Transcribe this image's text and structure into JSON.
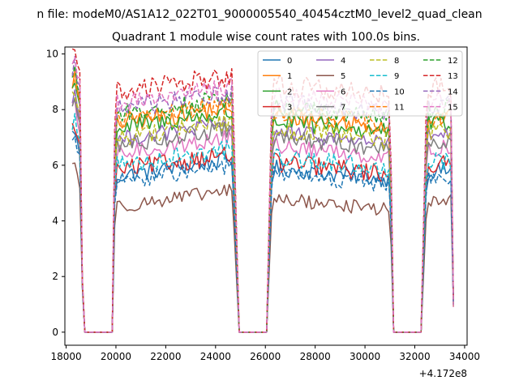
{
  "chart_data": {
    "type": "line",
    "suptitle": "n file: modeM0/AS1A12_022T01_9000005540_40454cztM0_level2_quad_clean",
    "title": "Quadrant 1 module wise count rates with 100.0s bins.",
    "xlabel": "",
    "ylabel": "",
    "x_offset_label": "+4.172e8",
    "xlim": [
      17950,
      34100
    ],
    "ylim": [
      -0.47,
      10.25
    ],
    "x_ticks": [
      18000,
      20000,
      22000,
      24000,
      26000,
      28000,
      30000,
      32000,
      34000
    ],
    "x_tick_labels": [
      "18000",
      "20000",
      "22000",
      "24000",
      "26000",
      "28000",
      "30000",
      "32000",
      "34000"
    ],
    "y_ticks": [
      0,
      2,
      4,
      6,
      8,
      10
    ],
    "y_tick_labels": [
      "0",
      "2",
      "4",
      "6",
      "8",
      "10"
    ],
    "grid": false,
    "legend_position": "top-right",
    "legend_columns": 4,
    "bin_seconds": 100,
    "segments": [
      {
        "start": 18250,
        "end": 18550
      },
      {
        "start": 19950,
        "end": 24650
      },
      {
        "start": 26250,
        "end": 30950
      },
      {
        "start": 32450,
        "end": 33450
      }
    ],
    "gap_segments": [
      {
        "start": 18750,
        "end": 19850
      },
      {
        "start": 24950,
        "end": 26050
      },
      {
        "start": 31150,
        "end": 32250
      }
    ],
    "series": [
      {
        "name": "0",
        "color": "#1f77b4",
        "dash": "solid",
        "level": 5.6,
        "amplitude": 0.3
      },
      {
        "name": "1",
        "color": "#ff7f0e",
        "dash": "solid",
        "level": 7.5,
        "amplitude": 0.35
      },
      {
        "name": "2",
        "color": "#2ca02c",
        "dash": "solid",
        "level": 7.3,
        "amplitude": 0.35
      },
      {
        "name": "3",
        "color": "#d62728",
        "dash": "solid",
        "level": 5.8,
        "amplitude": 0.35
      },
      {
        "name": "4",
        "color": "#9467bd",
        "dash": "solid",
        "level": 6.9,
        "amplitude": 0.3
      },
      {
        "name": "5",
        "color": "#8c564b",
        "dash": "solid",
        "level": 4.5,
        "amplitude": 0.25
      },
      {
        "name": "6",
        "color": "#e377c2",
        "dash": "solid",
        "level": 6.4,
        "amplitude": 0.3
      },
      {
        "name": "7",
        "color": "#7f7f7f",
        "dash": "solid",
        "level": 6.7,
        "amplitude": 0.3
      },
      {
        "name": "8",
        "color": "#bcbd22",
        "dash": "dashed",
        "level": 7.0,
        "amplitude": 0.35
      },
      {
        "name": "9",
        "color": "#17becf",
        "dash": "dashed",
        "level": 6.0,
        "amplitude": 0.35
      },
      {
        "name": "10",
        "color": "#1f77b4",
        "dash": "dashed",
        "level": 5.4,
        "amplitude": 0.3
      },
      {
        "name": "11",
        "color": "#ff7f0e",
        "dash": "dashed",
        "level": 7.6,
        "amplitude": 0.35
      },
      {
        "name": "12",
        "color": "#2ca02c",
        "dash": "dashed",
        "level": 7.8,
        "amplitude": 0.35
      },
      {
        "name": "13",
        "color": "#d62728",
        "dash": "dashed",
        "level": 8.6,
        "amplitude": 0.4
      },
      {
        "name": "14",
        "color": "#9467bd",
        "dash": "dashed",
        "level": 8.0,
        "amplitude": 0.35
      },
      {
        "name": "15",
        "color": "#e377c2",
        "dash": "dashed",
        "level": 8.2,
        "amplitude": 0.35
      }
    ]
  }
}
